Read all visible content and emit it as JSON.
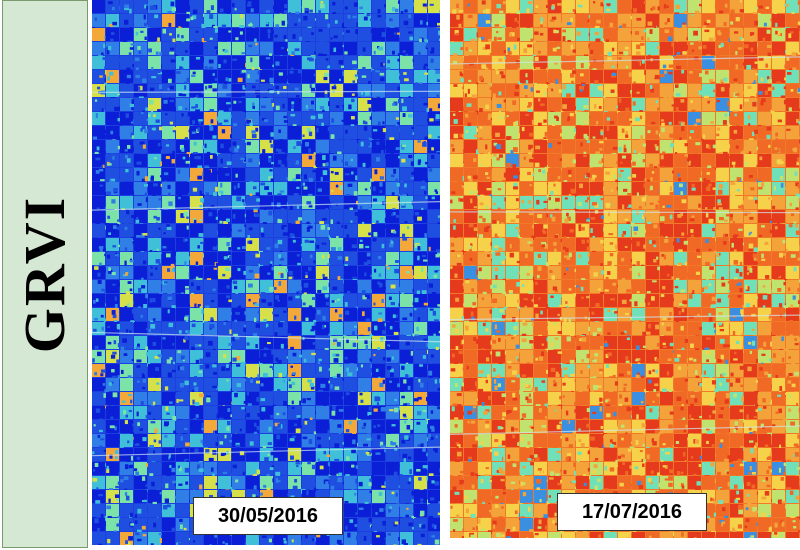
{
  "figure": {
    "side_label": "GRVI",
    "panels": [
      {
        "date": "30/05/2016",
        "palette": [
          "#0a1fd6",
          "#1e4fe0",
          "#2f7fe6",
          "#3fc0d8",
          "#7be3a8",
          "#d6e14a",
          "#f3a83a"
        ],
        "dominant_color": "#1e3fe0"
      },
      {
        "date": "17/07/2016",
        "palette": [
          "#e63a1c",
          "#f06a26",
          "#f3a33a",
          "#f6d24a",
          "#bfe36e",
          "#6fe0b8",
          "#3a8fe0"
        ],
        "dominant_color": "#f07a2a"
      }
    ]
  }
}
